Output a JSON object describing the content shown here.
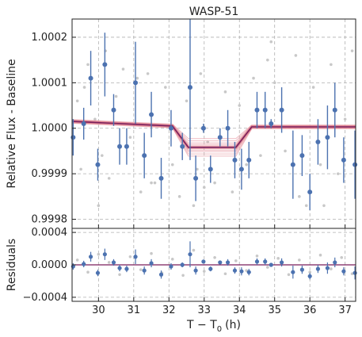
{
  "chart_data": [
    {
      "type": "scatter",
      "title": "WASP-51",
      "xlabel": "T − T",
      "xlabel_sub": "0",
      "xlabel_unit": "(h)",
      "ylabel": "Relative Flux - Baseline",
      "xlim": [
        29.25,
        37.3
      ],
      "ylim": [
        0.99978,
        1.00024
      ],
      "xticks": [
        30,
        31,
        32,
        33,
        34,
        35,
        36,
        37
      ],
      "xtick_labels": [
        "30",
        "31",
        "32",
        "33",
        "34",
        "35",
        "36",
        "37"
      ],
      "yticks": [
        0.9998,
        0.9999,
        1.0,
        1.0001,
        1.0002
      ],
      "ytick_labels": [
        "0.9998",
        "0.9999",
        "1.0000",
        "1.0001",
        "1.0002"
      ],
      "grid": true,
      "colors": {
        "binned": "#4c72b0",
        "raw": "#c8c8c8",
        "model": "#7a1f5c",
        "model_samples": "#e8a0a8"
      },
      "binned": {
        "x": [
          29.28,
          29.58,
          29.78,
          29.98,
          30.18,
          30.43,
          30.6,
          30.8,
          31.05,
          31.3,
          31.5,
          31.78,
          32.06,
          32.38,
          32.6,
          32.76,
          32.98,
          33.18,
          33.45,
          33.67,
          33.87,
          34.06,
          34.27,
          34.5,
          34.73,
          34.9,
          35.2,
          35.52,
          35.78,
          36.0,
          36.23,
          36.5,
          36.71,
          36.96,
          37.28
        ],
        "y": [
          0.99998,
          1.00001,
          1.00011,
          0.99992,
          1.00014,
          1.00004,
          0.99996,
          0.99996,
          1.0001,
          0.99994,
          1.00003,
          0.99989,
          1.0,
          0.99996,
          1.00009,
          0.99989,
          1.0,
          0.99991,
          0.99998,
          1.0,
          0.99993,
          0.99991,
          0.99993,
          1.00004,
          1.00004,
          1.00001,
          1.00004,
          0.99992,
          0.99994,
          0.99986,
          0.99997,
          0.99998,
          1.00004,
          0.99993,
          0.99992
        ],
        "yerr": [
          4e-05,
          3.5e-05,
          6e-05,
          3.5e-05,
          7e-05,
          3.5e-05,
          4e-05,
          4e-05,
          9e-05,
          5e-05,
          5e-05,
          4.5e-05,
          4e-05,
          3e-05,
          0.00016,
          5e-05,
          1e-05,
          3e-05,
          2e-05,
          4e-05,
          4e-05,
          4.5e-05,
          4e-05,
          4e-05,
          4e-05,
          1e-05,
          5e-05,
          7.5e-05,
          4.5e-05,
          4e-05,
          5e-05,
          7e-05,
          6e-05,
          5e-05,
          7.5e-05
        ]
      },
      "raw": {
        "x": [
          29.4,
          29.5,
          29.7,
          29.9,
          30.1,
          30.2,
          30.3,
          30.5,
          30.7,
          30.9,
          31.1,
          31.2,
          31.4,
          31.6,
          31.9,
          32.1,
          32.3,
          32.5,
          32.7,
          32.9,
          33.1,
          33.3,
          33.6,
          33.8,
          34.0,
          34.2,
          34.4,
          34.6,
          34.8,
          35.0,
          35.3,
          35.6,
          35.9,
          36.1,
          36.3,
          36.6,
          36.8,
          37.0,
          37.2,
          30.0,
          31.5,
          33.0,
          34.9,
          36.4,
          29.6,
          32.8,
          35.7
        ],
        "y": [
          1.00006,
          0.99991,
          1.00014,
          1.00002,
          0.99994,
          1.00017,
          0.99989,
          1.00007,
          1.00013,
          0.99998,
          1.00011,
          0.99986,
          1.00012,
          0.99988,
          1.00009,
          0.99992,
          0.99985,
          1.00006,
          0.99983,
          1.00012,
          0.99997,
          0.99988,
          1.00008,
          0.99986,
          1.00005,
          0.99992,
          1.00011,
          0.99994,
          1.00015,
          1.0001,
          0.99995,
          1.00016,
          0.99983,
          1.00009,
          0.99992,
          1.00014,
          0.9999,
          1.00002,
          1.00017,
          0.99983,
          0.99988,
          0.99987,
          1.00019,
          0.99983,
          1.00009,
          0.99991,
          0.99985
        ]
      },
      "model": {
        "x": [
          29.25,
          32.1,
          32.55,
          33.9,
          34.35,
          37.3
        ],
        "y": [
          1.000015,
          1.000005,
          0.999958,
          0.999958,
          1.000003,
          1.000003
        ]
      }
    },
    {
      "type": "scatter",
      "ylabel": "Residuals",
      "xlim": [
        29.25,
        37.3
      ],
      "ylim": [
        -0.00045,
        0.00045
      ],
      "yticks": [
        -0.0004,
        0.0,
        0.0004
      ],
      "ytick_labels": [
        "−0.0004",
        "0.0000",
        "0.0004"
      ],
      "grid": true,
      "binned": {
        "x": [
          29.28,
          29.58,
          29.78,
          29.98,
          30.18,
          30.43,
          30.6,
          30.8,
          31.05,
          31.3,
          31.5,
          31.78,
          32.06,
          32.38,
          32.6,
          32.76,
          32.98,
          33.18,
          33.45,
          33.67,
          33.87,
          34.06,
          34.27,
          34.5,
          34.73,
          34.9,
          35.2,
          35.52,
          35.78,
          36.0,
          36.23,
          36.5,
          36.71,
          36.96,
          37.28
        ],
        "y": [
          -2e-05,
          1e-05,
          0.0001,
          -0.0001,
          0.00013,
          3e-05,
          -4e-05,
          -5e-05,
          0.0001,
          -7e-05,
          2e-05,
          -0.00012,
          -2e-05,
          0.0,
          0.00013,
          -7e-05,
          4e-05,
          -5e-05,
          3e-05,
          3e-05,
          -7e-05,
          -8e-05,
          -9e-05,
          4e-05,
          4e-05,
          0.0,
          3e-05,
          -9e-05,
          -6e-05,
          -0.00014,
          -5e-05,
          -4e-05,
          3e-05,
          -8e-05,
          -0.0001
        ],
        "yerr": [
          4e-05,
          4e-05,
          6e-05,
          4e-05,
          7e-05,
          4e-05,
          4e-05,
          4e-05,
          9e-05,
          5e-05,
          5e-05,
          5e-05,
          4e-05,
          3e-05,
          0.00016,
          5e-05,
          2e-05,
          3e-05,
          2e-05,
          4e-05,
          4e-05,
          5e-05,
          4e-05,
          4e-05,
          4e-05,
          2e-05,
          5e-05,
          8e-05,
          5e-05,
          4e-05,
          5e-05,
          7e-05,
          6e-05,
          5e-05,
          8e-05
        ]
      },
      "raw": {
        "x": [
          29.4,
          29.7,
          30.0,
          30.3,
          30.6,
          30.9,
          31.2,
          31.5,
          31.8,
          32.1,
          32.4,
          32.7,
          33.0,
          33.3,
          33.6,
          33.9,
          34.2,
          34.5,
          34.8,
          35.1,
          35.4,
          35.7,
          36.0,
          36.3,
          36.6,
          36.9,
          37.2
        ],
        "y": [
          6e-05,
          -9e-05,
          0.00013,
          3e-05,
          -0.00012,
          0.0001,
          -6e-05,
          0.00014,
          -0.0001,
          7e-05,
          -0.00013,
          0.00018,
          -8e-05,
          9e-05,
          -0.00011,
          5e-05,
          -7e-05,
          0.00011,
          -3e-05,
          8e-05,
          -0.00012,
          6e-05,
          -9e-05,
          0.00012,
          -5e-05,
          9e-05,
          -0.00011
        ]
      }
    }
  ]
}
